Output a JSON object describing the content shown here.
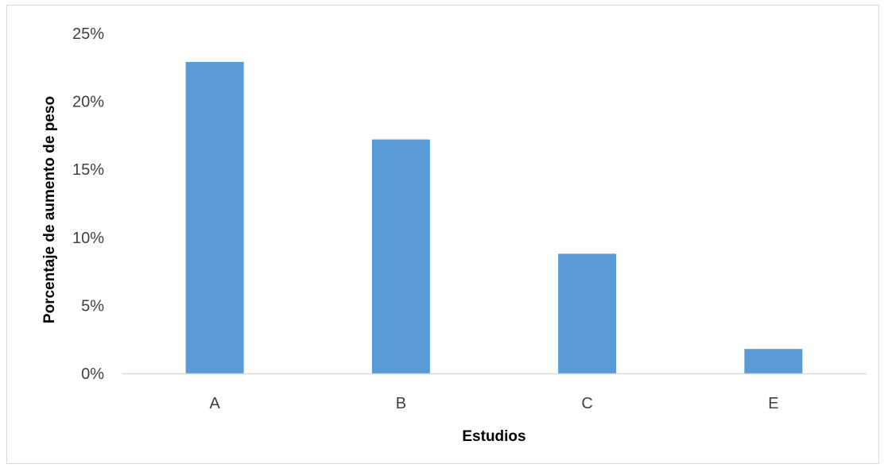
{
  "chart_data": {
    "type": "bar",
    "title": "",
    "xlabel": "Estudios",
    "ylabel": "Porcentaje de aumento de peso",
    "categories": [
      "A",
      "B",
      "C",
      "E"
    ],
    "series": [
      {
        "values": [
          22.9,
          17.2,
          8.8,
          1.8
        ]
      }
    ],
    "yticks": [
      "0%",
      "5%",
      "10%",
      "15%",
      "20%",
      "25%"
    ],
    "ylim": [
      0,
      25
    ],
    "grid": false,
    "legend": "none",
    "bar_color": "#5b9bd5",
    "axis_color": "#d9d9d9"
  }
}
